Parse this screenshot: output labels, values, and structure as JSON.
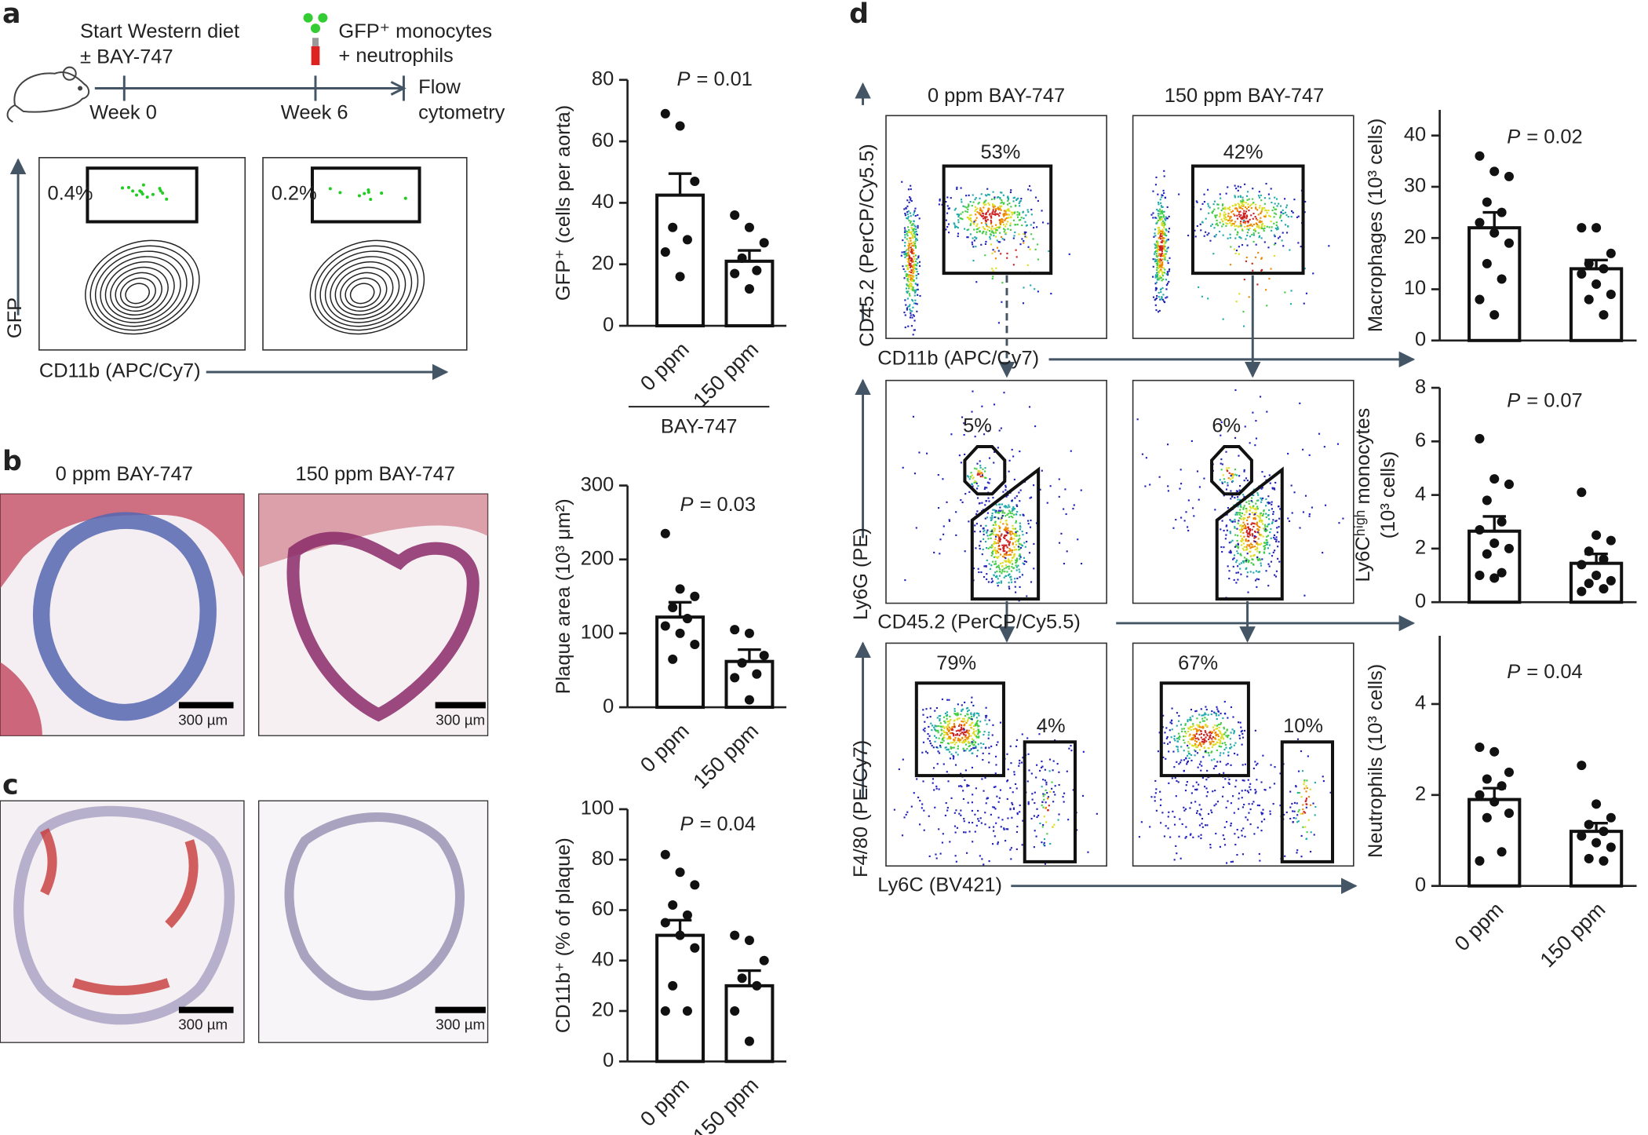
{
  "panels": {
    "a": {
      "label": "a",
      "diet": [
        "Start Western diet",
        "± BAY-747"
      ],
      "weeks": [
        "Week 0",
        "Week 6"
      ],
      "cells": [
        "GFP⁺ monocytes",
        "+ neutrophils"
      ],
      "readout": [
        "Flow",
        "cytometry"
      ],
      "gates": [
        "0.4%",
        "0.2%"
      ],
      "y_axis": "GFP",
      "x_axis": "CD11b (APC/Cy7)"
    },
    "b": {
      "label": "b",
      "columns": [
        "0 ppm BAY-747",
        "150 ppm BAY-747"
      ],
      "scale": [
        "300 µm",
        "300 µm"
      ]
    },
    "c": {
      "label": "c",
      "scale": [
        "300 µm",
        "300 µm"
      ]
    },
    "d": {
      "label": "d",
      "columns": [
        "0 ppm BAY-747",
        "150 ppm BAY-747"
      ],
      "rows": [
        {
          "y_axis": "CD45.2 (PerCP/Cy5.5)",
          "x_axis": "CD11b (APC/Cy7)",
          "gates": [
            "53%",
            "42%"
          ]
        },
        {
          "y_axis": "Ly6G (PE)",
          "x_axis": "CD45.2 (PerCP/Cy5.5)",
          "gates": [
            "5%",
            "6%"
          ]
        },
        {
          "y_axis": "F4/80 (PE/Cy7)",
          "x_axis": "Ly6C (BV421)",
          "gates": [
            "79%",
            "4%",
            "67%",
            "10%"
          ]
        }
      ]
    }
  },
  "chart_data": [
    {
      "type": "bar",
      "ylabel": [
        "GFP⁺ (cells per aorta)"
      ],
      "annotation": {
        "symbol": "P",
        "text": "= 0.01"
      },
      "categories": [
        "0 ppm",
        "150 ppm"
      ],
      "group_label": "BAY-747",
      "values": [
        42.5,
        21
      ],
      "errors": [
        7,
        3.5
      ],
      "points": [
        [
          69,
          65,
          47,
          32,
          28,
          24,
          16
        ],
        [
          36,
          32,
          27,
          22,
          18,
          17,
          12
        ]
      ],
      "ylim": [
        0,
        80
      ],
      "yticks": [
        0,
        20,
        40,
        60,
        80
      ]
    },
    {
      "type": "bar",
      "ylabel": [
        "Plaque area (10³ μm²)"
      ],
      "annotation": {
        "symbol": "P",
        "text": "= 0.03"
      },
      "categories": [
        "0 ppm",
        "150 ppm"
      ],
      "values": [
        122,
        62
      ],
      "errors": [
        20,
        16
      ],
      "points": [
        [
          235,
          160,
          150,
          135,
          120,
          110,
          100,
          85,
          65
        ],
        [
          105,
          100,
          70,
          60,
          45,
          40,
          10
        ]
      ],
      "ylim": [
        0,
        300
      ],
      "yticks": [
        0,
        100,
        200,
        300
      ]
    },
    {
      "type": "bar",
      "ylabel": [
        "CD11b⁺ (% of plaque)"
      ],
      "annotation": {
        "symbol": "P",
        "text": "= 0.04"
      },
      "categories": [
        "0 ppm",
        "150 ppm"
      ],
      "values": [
        50,
        30
      ],
      "errors": [
        6,
        6
      ],
      "points": [
        [
          82,
          75,
          70,
          62,
          58,
          55,
          50,
          45,
          30,
          20,
          20
        ],
        [
          50,
          48,
          40,
          33,
          30,
          20,
          8
        ]
      ],
      "ylim": [
        0,
        100
      ],
      "yticks": [
        0,
        20,
        40,
        60,
        80,
        100
      ]
    },
    {
      "type": "bar",
      "ylabel": [
        "Macrophages (10³ cells)"
      ],
      "annotation": {
        "symbol": "P",
        "text": "= 0.02"
      },
      "values": [
        22,
        14
      ],
      "errors": [
        3,
        1.7
      ],
      "points": [
        [
          36,
          33,
          32,
          27,
          25,
          23,
          21,
          19,
          15,
          12,
          8,
          5
        ],
        [
          22,
          22,
          17,
          15,
          14,
          13,
          11,
          9,
          8,
          5
        ]
      ],
      "ylim": [
        0,
        45
      ],
      "yticks": [
        0,
        10,
        20,
        30,
        40
      ]
    },
    {
      "type": "bar",
      "ylabel": [
        "Ly6Cʰⁱᵍʰ monocytes",
        "(10³ cells)"
      ],
      "annotation": {
        "symbol": "P",
        "text": "= 0.07"
      },
      "values": [
        2.65,
        1.45
      ],
      "errors": [
        0.55,
        0.35
      ],
      "points": [
        [
          6.1,
          4.6,
          4.4,
          3.8,
          3.0,
          2.7,
          2.2,
          2.0,
          1.8,
          1.1,
          1.0,
          0.9
        ],
        [
          4.1,
          2.5,
          2.3,
          1.9,
          1.6,
          1.4,
          1.0,
          0.8,
          0.7,
          0.5,
          0.4
        ]
      ],
      "ylim": [
        0,
        8
      ],
      "yticks": [
        0,
        2,
        4,
        6,
        8
      ]
    },
    {
      "type": "bar",
      "ylabel": [
        "Neutrophils (10³ cells)"
      ],
      "annotation": {
        "symbol": "P",
        "text": "= 0.04"
      },
      "categories": [
        "0 ppm",
        "150 ppm"
      ],
      "values": [
        1.9,
        1.2
      ],
      "errors": [
        0.25,
        0.18
      ],
      "points": [
        [
          3.05,
          2.95,
          2.5,
          2.35,
          2.2,
          2.0,
          1.85,
          1.6,
          1.5,
          0.75,
          0.55
        ],
        [
          2.65,
          1.8,
          1.5,
          1.35,
          1.2,
          1.1,
          0.95,
          0.85,
          0.6,
          0.55
        ]
      ],
      "ylim": [
        0,
        5.5
      ],
      "yticks": [
        0,
        2,
        4
      ]
    }
  ]
}
